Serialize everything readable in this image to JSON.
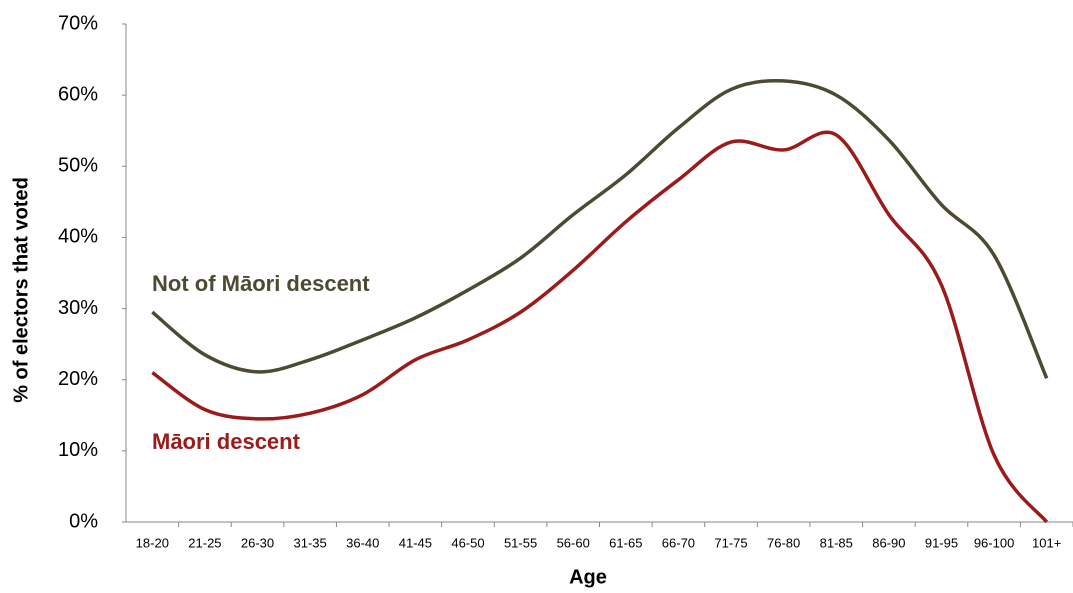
{
  "chart_data": {
    "type": "line",
    "x_label": "Age",
    "y_label": "% of electors that voted",
    "categories": [
      "18-20",
      "21-25",
      "26-30",
      "31-35",
      "36-40",
      "41-45",
      "46-50",
      "51-55",
      "56-60",
      "61-65",
      "66-70",
      "71-75",
      "76-80",
      "81-85",
      "86-90",
      "91-95",
      "96-100",
      "101+"
    ],
    "series": [
      {
        "name": "Not of Māori descent",
        "color": "#4d4a33",
        "values": [
          29.5,
          23.5,
          21.1,
          22.8,
          25.6,
          28.7,
          32.6,
          37.1,
          43.2,
          48.8,
          55.4,
          60.8,
          62,
          60,
          53.7,
          44.6,
          37.5,
          20.2
        ]
      },
      {
        "name": "Māori descent",
        "color": "#9b1b1b",
        "values": [
          21,
          15.8,
          14.5,
          15.3,
          17.9,
          22.8,
          25.6,
          29.5,
          35.4,
          42.2,
          48.1,
          53.4,
          52.3,
          54.4,
          43.2,
          33.3,
          9.4,
          0
        ]
      }
    ],
    "ylim": [
      0,
      70
    ],
    "yticks": [
      {
        "value": 0,
        "label": "0%"
      },
      {
        "value": 10,
        "label": "10%"
      },
      {
        "value": 20,
        "label": "20%"
      },
      {
        "value": 30,
        "label": "30%"
      },
      {
        "value": 40,
        "label": "40%"
      },
      {
        "value": 50,
        "label": "50%"
      },
      {
        "value": 60,
        "label": "60%"
      },
      {
        "value": 70,
        "label": "70%"
      }
    ],
    "grid": false
  }
}
